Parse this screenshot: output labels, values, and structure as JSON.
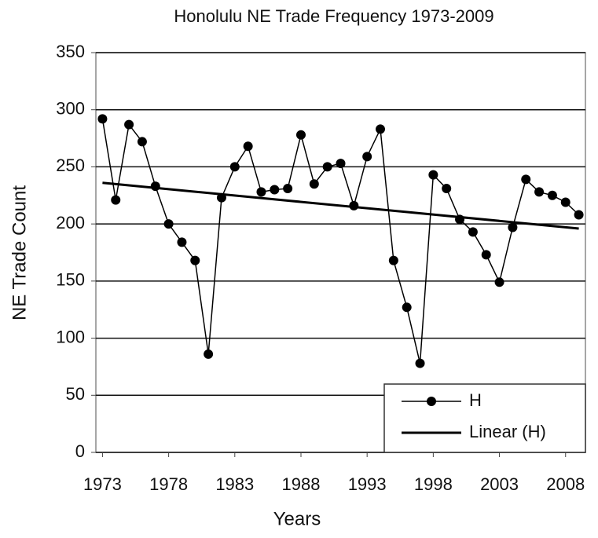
{
  "chart_data": {
    "type": "line",
    "title": "Honolulu NE Trade Frequency 1973-2009",
    "x_label": "Years",
    "y_label": "NE Trade Count",
    "x": [
      1973,
      1974,
      1975,
      1976,
      1977,
      1978,
      1979,
      1980,
      1981,
      1982,
      1983,
      1984,
      1985,
      1986,
      1987,
      1988,
      1989,
      1990,
      1991,
      1992,
      1993,
      1994,
      1995,
      1996,
      1997,
      1998,
      1999,
      2000,
      2001,
      2002,
      2003,
      2004,
      2005,
      2006,
      2007,
      2008,
      2009
    ],
    "series": [
      {
        "name": "H",
        "color": "#000000",
        "marker": "circle",
        "values": [
          292,
          221,
          287,
          272,
          233,
          200,
          184,
          168,
          86,
          223,
          250,
          268,
          228,
          230,
          231,
          278,
          235,
          250,
          253,
          216,
          259,
          283,
          168,
          127,
          78,
          243,
          231,
          204,
          193,
          173,
          149,
          197,
          239,
          228,
          225,
          219,
          208
        ]
      },
      {
        "name": "Linear (H)",
        "color": "#000000",
        "x": [
          1973,
          2009
        ],
        "values": [
          236,
          196
        ]
      }
    ],
    "xlim": [
      1972.5,
      2009.5
    ],
    "xticks": [
      1973,
      1978,
      1983,
      1988,
      1993,
      1998,
      2003,
      2008
    ],
    "ylim": [
      0,
      350
    ],
    "yticks": [
      0,
      50,
      100,
      150,
      200,
      250,
      300,
      350
    ],
    "grid": true,
    "legend": "lower right"
  }
}
